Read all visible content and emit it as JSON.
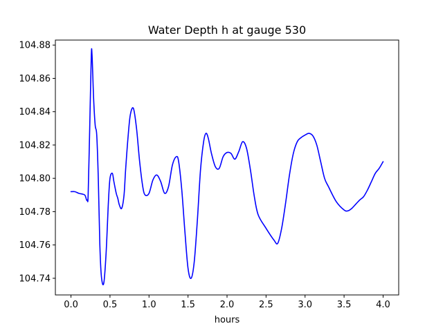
{
  "chart_data": {
    "type": "line",
    "title": "Water Depth h at gauge 530",
    "xlabel": "hours",
    "ylabel": "",
    "xlim": [
      -0.2,
      4.2
    ],
    "ylim": [
      104.73,
      104.883
    ],
    "xticks": [
      0.0,
      0.5,
      1.0,
      1.5,
      2.0,
      2.5,
      3.0,
      3.5,
      4.0
    ],
    "xtick_labels": [
      "0.0",
      "0.5",
      "1.0",
      "1.5",
      "2.0",
      "2.5",
      "3.0",
      "3.5",
      "4.0"
    ],
    "yticks": [
      104.74,
      104.76,
      104.78,
      104.8,
      104.82,
      104.84,
      104.86,
      104.88
    ],
    "ytick_labels": [
      "104.74",
      "104.76",
      "104.78",
      "104.80",
      "104.82",
      "104.84",
      "104.86",
      "104.88"
    ],
    "grid": false,
    "series": [
      {
        "color": "#0000ff",
        "x": [
          0.0,
          0.05,
          0.1,
          0.15,
          0.18,
          0.2,
          0.21,
          0.22,
          0.24,
          0.26,
          0.27,
          0.29,
          0.31,
          0.33,
          0.35,
          0.37,
          0.39,
          0.42,
          0.45,
          0.48,
          0.5,
          0.53,
          0.55,
          0.58,
          0.6,
          0.62,
          0.65,
          0.68,
          0.7,
          0.73,
          0.76,
          0.8,
          0.84,
          0.88,
          0.92,
          0.95,
          1.0,
          1.05,
          1.1,
          1.15,
          1.2,
          1.25,
          1.3,
          1.35,
          1.38,
          1.42,
          1.46,
          1.5,
          1.54,
          1.58,
          1.62,
          1.66,
          1.7,
          1.73,
          1.76,
          1.8,
          1.85,
          1.9,
          1.95,
          2.0,
          2.05,
          2.1,
          2.15,
          2.2,
          2.25,
          2.3,
          2.35,
          2.4,
          2.5,
          2.6,
          2.65,
          2.7,
          2.75,
          2.8,
          2.85,
          2.9,
          2.95,
          3.0,
          3.05,
          3.1,
          3.15,
          3.2,
          3.25,
          3.3,
          3.4,
          3.5,
          3.55,
          3.6,
          3.65,
          3.7,
          3.75,
          3.8,
          3.85,
          3.9,
          3.95,
          4.0
        ],
        "y": [
          104.792,
          104.792,
          104.791,
          104.7905,
          104.7898,
          104.787,
          104.787,
          104.79,
          104.83,
          104.873,
          104.874,
          104.848,
          104.832,
          104.826,
          104.8,
          104.76,
          104.741,
          104.737,
          104.755,
          104.786,
          104.8,
          104.803,
          104.798,
          104.791,
          104.788,
          104.784,
          104.782,
          104.79,
          104.805,
          104.824,
          104.838,
          104.842,
          104.83,
          104.81,
          104.795,
          104.79,
          104.791,
          104.799,
          104.802,
          104.798,
          104.791,
          104.795,
          104.808,
          104.813,
          104.81,
          104.793,
          104.768,
          104.746,
          104.74,
          104.75,
          104.775,
          104.805,
          104.822,
          104.827,
          104.824,
          104.815,
          104.807,
          104.806,
          104.813,
          104.8155,
          104.815,
          104.8115,
          104.816,
          104.822,
          104.818,
          104.805,
          104.789,
          104.778,
          104.77,
          104.763,
          104.761,
          104.77,
          104.785,
          104.802,
          104.815,
          104.822,
          104.8245,
          104.826,
          104.827,
          104.8255,
          104.82,
          104.81,
          104.8,
          104.795,
          104.786,
          104.781,
          104.7805,
          104.782,
          104.7845,
          104.787,
          104.789,
          104.793,
          104.798,
          104.803,
          104.806,
          104.81
        ]
      }
    ]
  }
}
